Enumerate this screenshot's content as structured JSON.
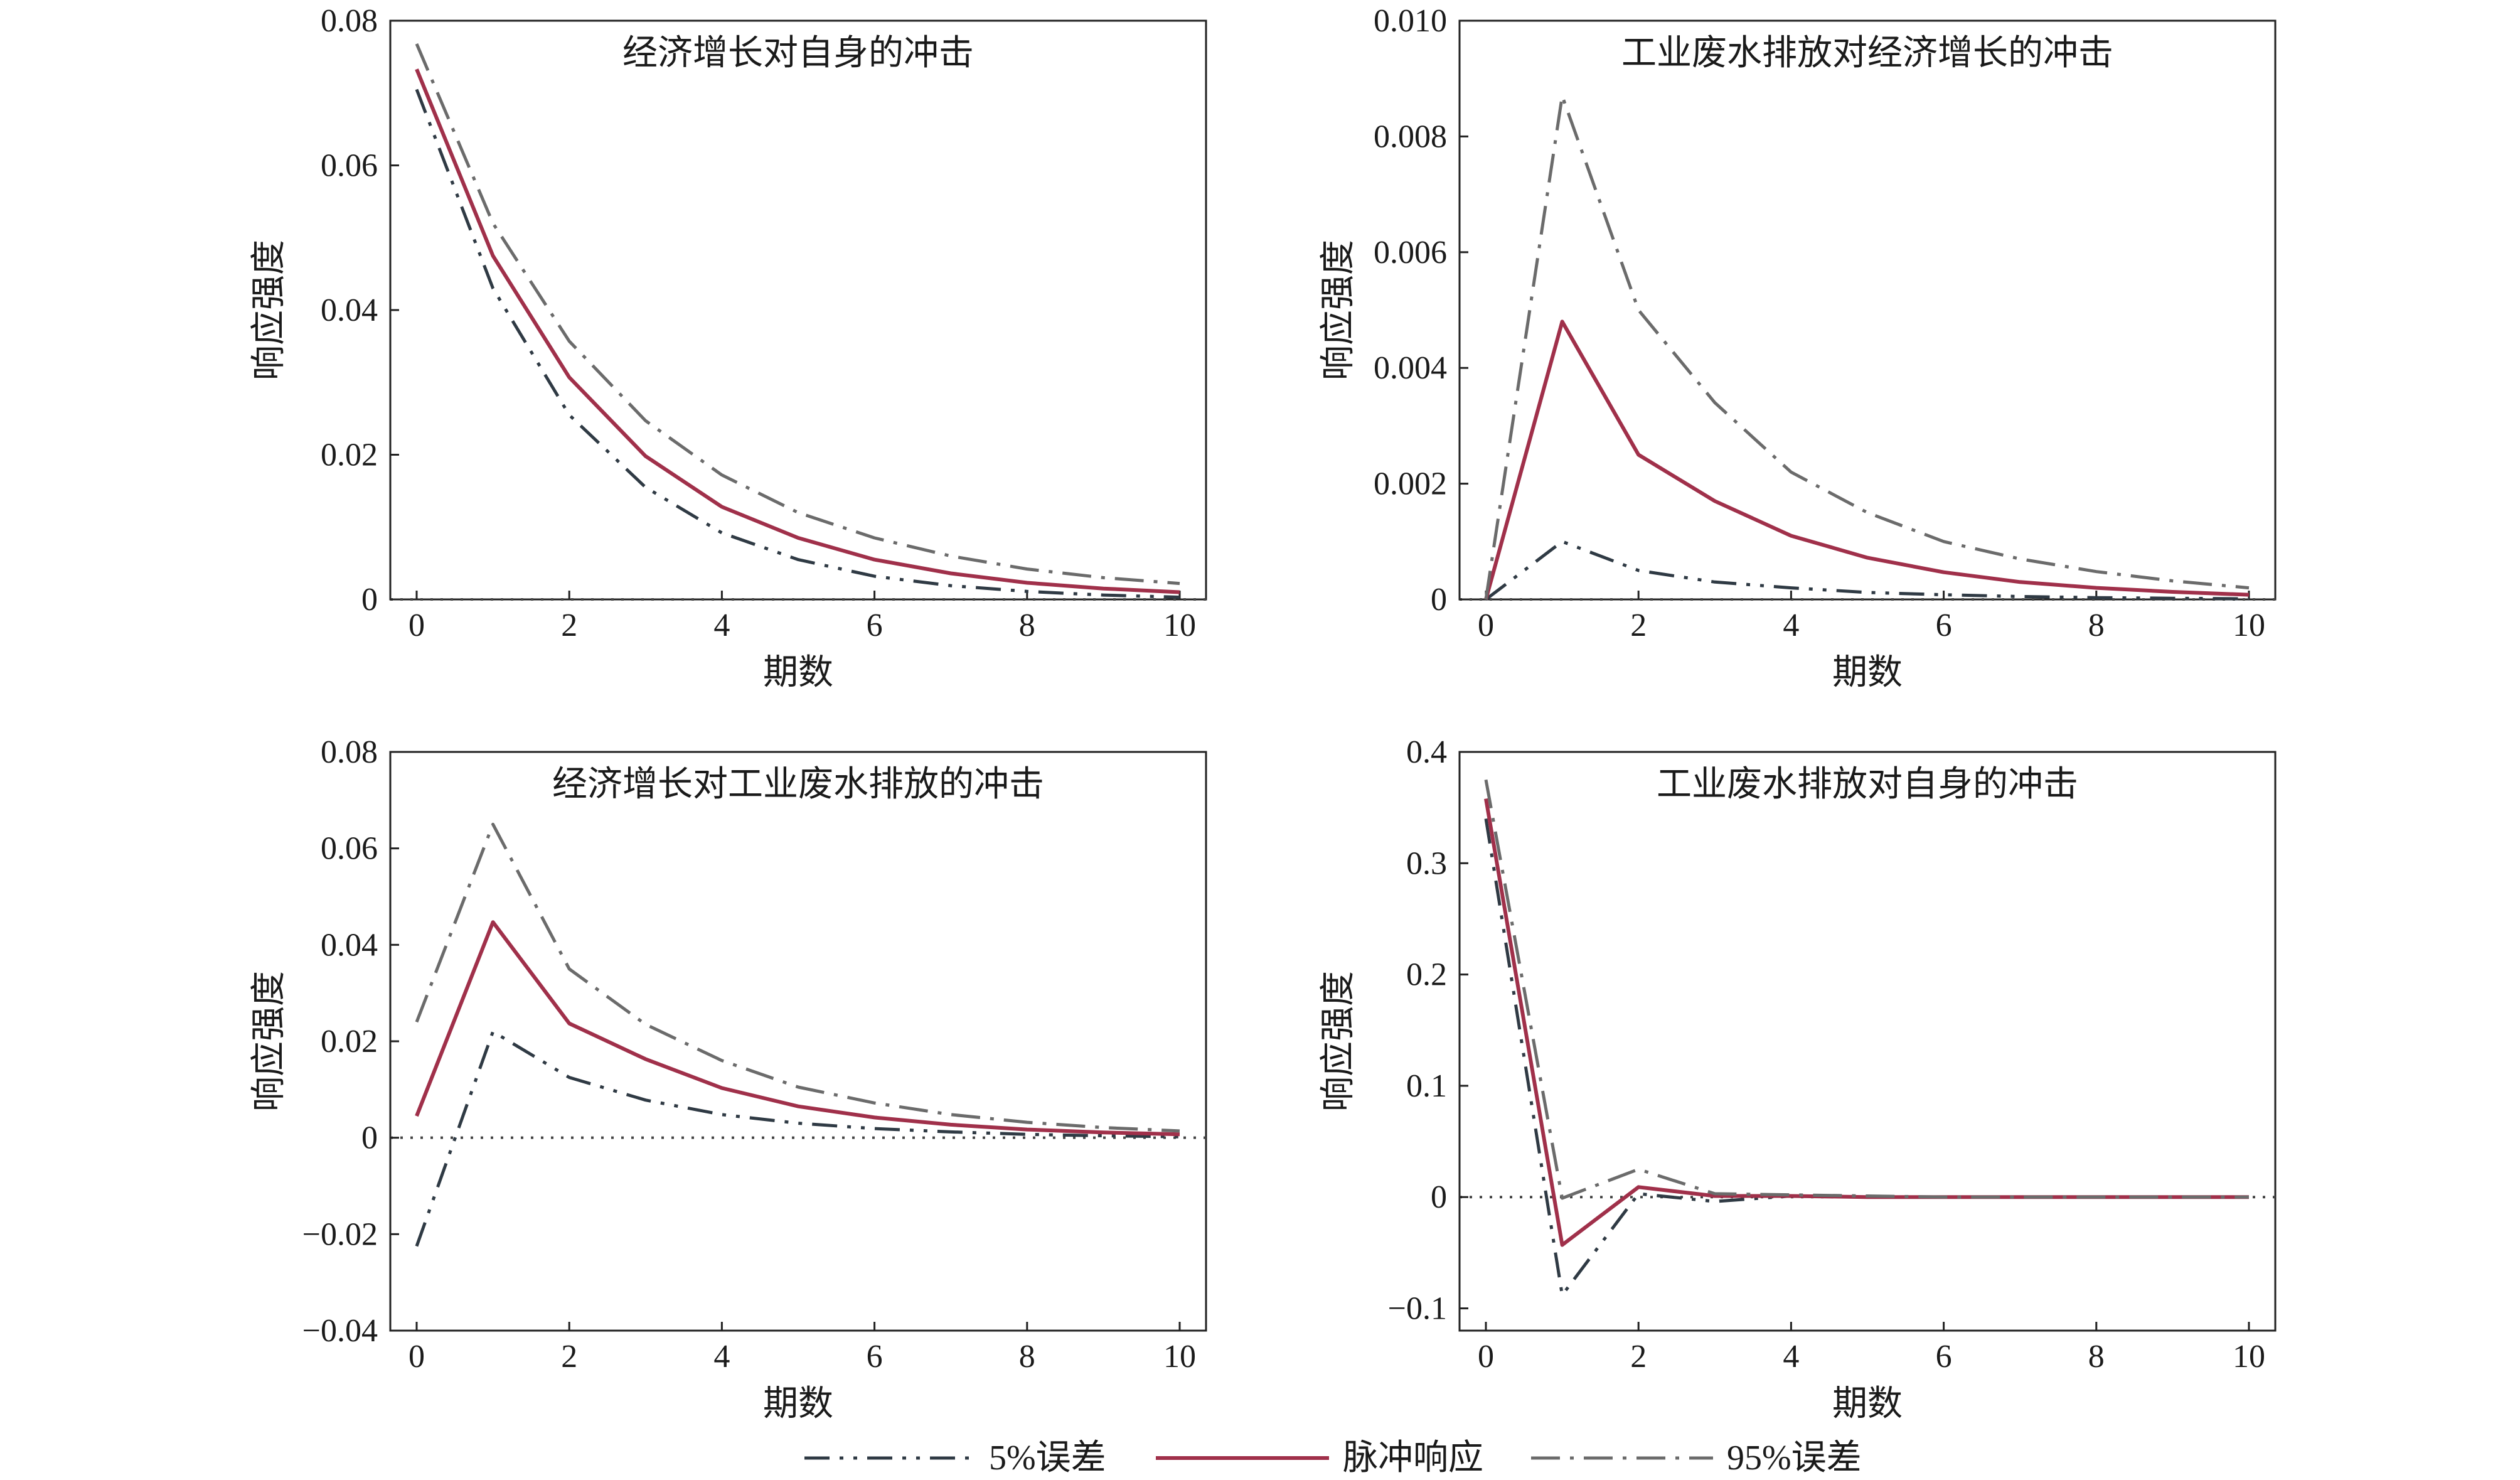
{
  "colors": {
    "impulse": "#a0304a",
    "lower": "#2f3a44",
    "upper": "#6b6b6b",
    "axis": "#222222",
    "zero_line": "#444444"
  },
  "legend": {
    "lower_label": "5%误差",
    "impulse_label": "脉冲响应",
    "upper_label": "95%误差"
  },
  "chart_data": [
    {
      "type": "line",
      "title": "经济增长对自身的冲击",
      "xlabel": "期数",
      "ylabel": "响应强度",
      "xlim": [
        0,
        10
      ],
      "ylim": [
        0,
        0.08
      ],
      "xticks": [
        0,
        2,
        4,
        6,
        8,
        10
      ],
      "xtick_labels": [
        "0",
        "2",
        "4",
        "6",
        "8",
        "10"
      ],
      "yticks": [
        0,
        0.02,
        0.04,
        0.06,
        0.08
      ],
      "ytick_labels": [
        "0",
        "0.02",
        "0.04",
        "0.06",
        "0.08"
      ],
      "grid": false,
      "x": [
        0,
        1,
        2,
        3,
        4,
        5,
        6,
        7,
        8,
        9,
        10
      ],
      "series": [
        {
          "name": "5%误差",
          "values": [
            0.0705,
            0.043,
            0.0255,
            0.0155,
            0.0092,
            0.0055,
            0.0032,
            0.0019,
            0.0011,
            0.0006,
            0.0003
          ]
        },
        {
          "name": "脉冲响应",
          "values": [
            0.0733,
            0.0475,
            0.0307,
            0.0198,
            0.0128,
            0.0085,
            0.0055,
            0.0036,
            0.0023,
            0.0015,
            0.001
          ]
        },
        {
          "name": "95%误差",
          "values": [
            0.0768,
            0.052,
            0.0357,
            0.0247,
            0.0172,
            0.012,
            0.0085,
            0.006,
            0.0042,
            0.003,
            0.0022
          ]
        }
      ]
    },
    {
      "type": "line",
      "title": "工业废水排放对经济增长的冲击",
      "xlabel": "期数",
      "ylabel": "响应强度",
      "xlim": [
        0,
        10
      ],
      "ylim": [
        0,
        0.01
      ],
      "xticks": [
        0,
        2,
        4,
        6,
        8,
        10
      ],
      "xtick_labels": [
        "0",
        "2",
        "4",
        "6",
        "8",
        "10"
      ],
      "yticks": [
        0,
        0.002,
        0.004,
        0.006,
        0.008,
        0.01
      ],
      "ytick_labels": [
        "0",
        "0.002",
        "0.004",
        "0.006",
        "0.008",
        "0.010"
      ],
      "grid": false,
      "x": [
        0,
        1,
        2,
        3,
        4,
        5,
        6,
        7,
        8,
        9,
        10
      ],
      "series": [
        {
          "name": "5%误差",
          "values": [
            0,
            0.001,
            0.0005,
            0.0003,
            0.0002,
            0.00012,
            8e-05,
            5e-05,
            3e-05,
            2e-05,
            1e-05
          ]
        },
        {
          "name": "脉冲响应",
          "values": [
            0,
            0.0048,
            0.0025,
            0.0017,
            0.0011,
            0.00072,
            0.00047,
            0.0003,
            0.0002,
            0.00013,
            8e-05
          ]
        },
        {
          "name": "95%误差",
          "values": [
            0,
            0.0087,
            0.005,
            0.0034,
            0.0022,
            0.0015,
            0.001,
            0.0007,
            0.00048,
            0.00032,
            0.0002
          ]
        }
      ]
    },
    {
      "type": "line",
      "title": "经济增长对工业废水排放的冲击",
      "xlabel": "期数",
      "ylabel": "响应强度",
      "xlim": [
        0,
        10
      ],
      "ylim": [
        -0.04,
        0.08
      ],
      "xticks": [
        0,
        2,
        4,
        6,
        8,
        10
      ],
      "xtick_labels": [
        "0",
        "2",
        "4",
        "6",
        "8",
        "10"
      ],
      "yticks": [
        -0.04,
        -0.02,
        0,
        0.02,
        0.04,
        0.06,
        0.08
      ],
      "ytick_labels": [
        "−0.04",
        "−0.02",
        "0",
        "0.02",
        "0.04",
        "0.06",
        "0.08"
      ],
      "grid": false,
      "x": [
        0,
        1,
        2,
        3,
        4,
        5,
        6,
        7,
        8,
        9,
        10
      ],
      "series": [
        {
          "name": "5%误差",
          "values": [
            -0.0225,
            0.022,
            0.0125,
            0.0078,
            0.0048,
            0.003,
            0.0019,
            0.0012,
            0.0007,
            0.0004,
            0.0002
          ]
        },
        {
          "name": "脉冲响应",
          "values": [
            0.0045,
            0.0447,
            0.0237,
            0.0163,
            0.0103,
            0.0065,
            0.0042,
            0.0027,
            0.0017,
            0.0011,
            0.0007
          ]
        },
        {
          "name": "95%误差",
          "values": [
            0.024,
            0.065,
            0.035,
            0.0235,
            0.016,
            0.0105,
            0.0072,
            0.0048,
            0.0032,
            0.0021,
            0.0014
          ]
        }
      ]
    },
    {
      "type": "line",
      "title": "工业废水排放对自身的冲击",
      "xlabel": "期数",
      "ylabel": "响应强度",
      "xlim": [
        0,
        10
      ],
      "ylim": [
        -0.12,
        0.4
      ],
      "xticks": [
        0,
        2,
        4,
        6,
        8,
        10
      ],
      "xtick_labels": [
        "0",
        "2",
        "4",
        "6",
        "8",
        "10"
      ],
      "yticks": [
        -0.1,
        0,
        0.1,
        0.2,
        0.3,
        0.4
      ],
      "ytick_labels": [
        "−0.1",
        "0",
        "0.1",
        "0.2",
        "0.3",
        "0.4"
      ],
      "grid": false,
      "x": [
        0,
        1,
        2,
        3,
        4,
        5,
        6,
        7,
        8,
        9,
        10
      ],
      "series": [
        {
          "name": "5%误差",
          "values": [
            0.34,
            -0.088,
            0.003,
            -0.004,
            0.001,
            0,
            0,
            0,
            0,
            0,
            0
          ]
        },
        {
          "name": "脉冲响应",
          "values": [
            0.358,
            -0.043,
            0.009,
            0.001,
            0.001,
            0,
            0,
            0,
            0,
            0,
            0
          ]
        },
        {
          "name": "95%误差",
          "values": [
            0.375,
            -0.001,
            0.025,
            0.003,
            0.002,
            0.001,
            0,
            0,
            0,
            0,
            0
          ]
        }
      ]
    }
  ]
}
